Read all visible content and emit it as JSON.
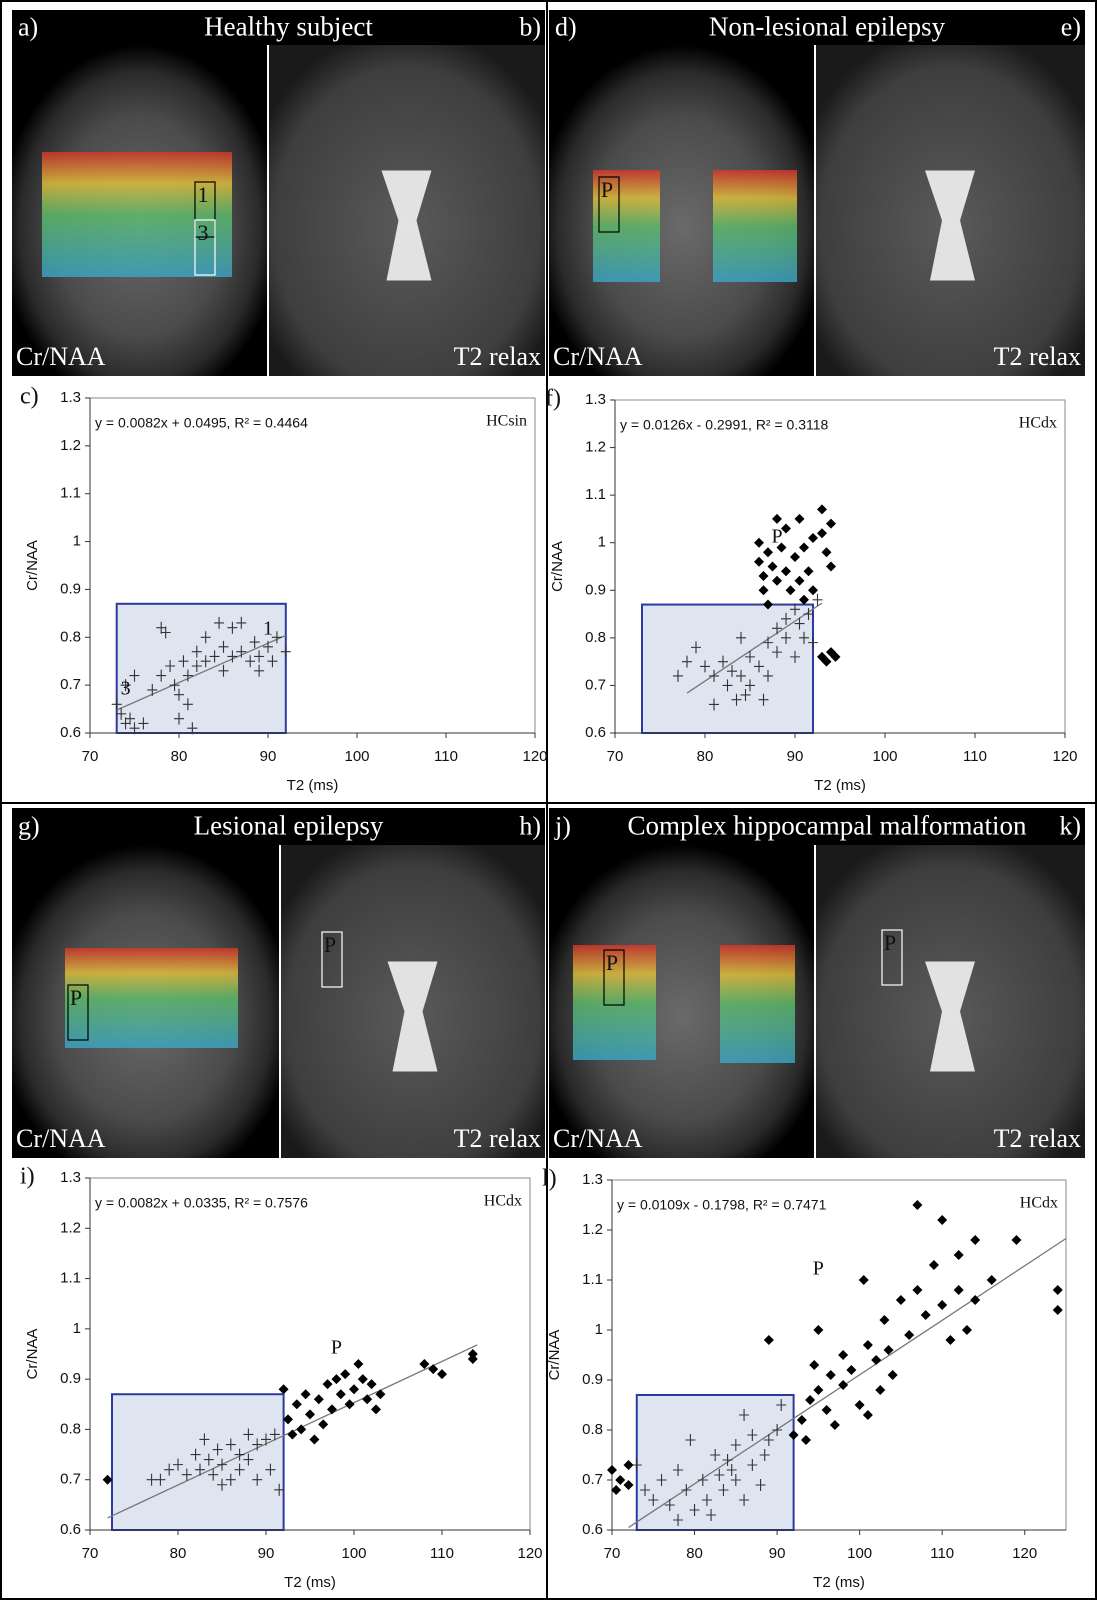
{
  "image_panels": [
    {
      "label_left": "a)",
      "title": "Healthy subject",
      "label_right": "b)",
      "caption_left": "Cr/NAA",
      "caption_right": "T2 relax",
      "roi_labels": [
        "1",
        "3"
      ]
    },
    {
      "label_left": "d)",
      "title": "Non-lesional epilepsy",
      "label_right": "e)",
      "caption_left": "Cr/NAA",
      "caption_right": "T2 relax",
      "roi_labels": [
        "P"
      ]
    },
    {
      "label_left": "g)",
      "title": "Lesional epilepsy",
      "label_right": "h)",
      "caption_left": "Cr/NAA",
      "caption_right": "T2 relax",
      "roi_labels": [
        "P",
        "P"
      ]
    },
    {
      "label_left": "j)",
      "title": "Complex hippocampal  malformation",
      "label_right": "k)",
      "caption_left": "Cr/NAA",
      "caption_right": "T2 relax",
      "roi_labels": [
        "P",
        "P"
      ]
    }
  ],
  "chart_data": [
    {
      "type": "scatter",
      "title": "c)",
      "equation": "y = 0.0082x + 0.0495, R² = 0.4464",
      "region": "HCsin",
      "x_label": "T2 (ms)",
      "y_label": "Cr/NAA",
      "xlim": [
        70,
        120
      ],
      "xticks": [
        70,
        80,
        90,
        100,
        110,
        120
      ],
      "ylim": [
        0.6,
        1.3
      ],
      "yticks": [
        0.6,
        0.7,
        0.8,
        0.9,
        1,
        1.1,
        1.2,
        1.3
      ],
      "highlight": {
        "x": [
          73,
          92
        ],
        "values": [
          0.6,
          0.87
        ],
        "color": "#2b3a9e",
        "fill": "#dfe4f1"
      },
      "trendline": {
        "x": [
          73,
          92
        ],
        "values": [
          0.648,
          0.804
        ],
        "color": "#777777"
      },
      "series": [
        {
          "marker": "cross",
          "color": "#333333",
          "x": [
            73,
            73.5,
            74,
            74.5,
            75,
            74,
            75,
            76,
            77,
            78,
            78,
            78.5,
            79,
            79.5,
            80,
            80,
            80.5,
            81,
            81,
            81.5,
            82,
            82,
            83,
            83,
            84,
            84.5,
            85,
            85,
            86,
            86,
            87,
            87,
            88,
            88.5,
            89,
            89,
            90,
            90.5,
            91,
            92
          ],
          "values": [
            0.66,
            0.64,
            0.62,
            0.63,
            0.61,
            0.7,
            0.72,
            0.62,
            0.69,
            0.72,
            0.82,
            0.81,
            0.74,
            0.7,
            0.68,
            0.63,
            0.75,
            0.72,
            0.66,
            0.61,
            0.77,
            0.74,
            0.8,
            0.75,
            0.76,
            0.83,
            0.78,
            0.73,
            0.82,
            0.76,
            0.83,
            0.77,
            0.75,
            0.79,
            0.73,
            0.76,
            0.78,
            0.75,
            0.8,
            0.77
          ]
        }
      ],
      "annotations": [
        {
          "text": "1",
          "x": 90,
          "y": 0.815
        },
        {
          "text": "3",
          "x": 74,
          "y": 0.69
        }
      ]
    },
    {
      "type": "scatter",
      "title": "f)",
      "equation": "y = 0.0126x - 0.2991, R² = 0.3118",
      "region": "HCdx",
      "x_label": "T2 (ms)",
      "y_label": "Cr/NAA",
      "xlim": [
        70,
        120
      ],
      "xticks": [
        70,
        80,
        90,
        100,
        110,
        120
      ],
      "ylim": [
        0.6,
        1.3
      ],
      "yticks": [
        0.6,
        0.7,
        0.8,
        0.9,
        1,
        1.1,
        1.2,
        1.3
      ],
      "highlight": {
        "x": [
          73,
          92
        ],
        "values": [
          0.6,
          0.87
        ],
        "color": "#2b3a9e",
        "fill": "#dfe4f1"
      },
      "trendline": {
        "x": [
          78,
          93
        ],
        "values": [
          0.684,
          0.873
        ],
        "color": "#777777"
      },
      "series": [
        {
          "marker": "cross",
          "color": "#333333",
          "x": [
            77,
            78,
            79,
            80,
            81,
            81,
            82,
            82.5,
            83,
            83.5,
            84,
            84,
            84.5,
            85,
            85,
            86,
            86.5,
            87,
            87,
            88,
            88,
            89,
            89,
            90,
            90,
            90.5,
            91,
            91.5,
            92,
            92.5
          ],
          "values": [
            0.72,
            0.75,
            0.78,
            0.74,
            0.72,
            0.66,
            0.75,
            0.7,
            0.73,
            0.67,
            0.8,
            0.72,
            0.68,
            0.76,
            0.7,
            0.74,
            0.67,
            0.79,
            0.72,
            0.82,
            0.77,
            0.84,
            0.8,
            0.86,
            0.76,
            0.83,
            0.8,
            0.85,
            0.79,
            0.88
          ]
        },
        {
          "marker": "diamond",
          "color": "#000000",
          "x": [
            86,
            86,
            86.5,
            86.5,
            87,
            87,
            87.5,
            88,
            88,
            88.5,
            89,
            89,
            89.5,
            90,
            90.5,
            90.5,
            91,
            91,
            91.5,
            92,
            92,
            93,
            93,
            93.5,
            94,
            94,
            93,
            93.5,
            94,
            94.5
          ],
          "values": [
            1.0,
            0.96,
            0.93,
            0.9,
            0.98,
            0.87,
            0.95,
            0.92,
            1.05,
            0.99,
            1.03,
            0.94,
            0.9,
            0.97,
            1.05,
            0.92,
            0.99,
            0.88,
            0.94,
            0.9,
            1.01,
            1.07,
            1.02,
            0.98,
            1.04,
            0.95,
            0.76,
            0.75,
            0.77,
            0.76
          ]
        }
      ],
      "annotations": [
        {
          "text": "P",
          "x": 88,
          "y": 1.01
        }
      ]
    },
    {
      "type": "scatter",
      "title": "i)",
      "equation": "y = 0.0082x + 0.0335, R² = 0.7576",
      "region": "HCdx",
      "x_label": "T2 (ms)",
      "y_label": "Cr/NAA",
      "xlim": [
        70,
        120
      ],
      "xticks": [
        70,
        80,
        90,
        100,
        110,
        120
      ],
      "ylim": [
        0.6,
        1.3
      ],
      "yticks": [
        0.6,
        0.7,
        0.8,
        0.9,
        1,
        1.1,
        1.2,
        1.3
      ],
      "highlight": {
        "x": [
          72.5,
          92
        ],
        "values": [
          0.6,
          0.87
        ],
        "color": "#2b3a9e",
        "fill": "#dfe4f1"
      },
      "trendline": {
        "x": [
          72,
          114
        ],
        "values": [
          0.624,
          0.968
        ],
        "color": "#777777"
      },
      "series": [
        {
          "marker": "cross",
          "color": "#333333",
          "x": [
            77,
            78,
            79,
            80,
            81,
            82,
            82.5,
            83,
            83.5,
            84,
            84.5,
            85,
            85,
            86,
            86,
            87,
            87,
            88,
            88,
            89,
            89,
            90,
            90.5,
            91,
            91.5
          ],
          "values": [
            0.7,
            0.7,
            0.72,
            0.73,
            0.71,
            0.75,
            0.72,
            0.78,
            0.74,
            0.71,
            0.76,
            0.69,
            0.73,
            0.77,
            0.7,
            0.75,
            0.72,
            0.79,
            0.74,
            0.7,
            0.77,
            0.78,
            0.72,
            0.79,
            0.68
          ]
        },
        {
          "marker": "diamond",
          "color": "#000000",
          "x": [
            72,
            92,
            92.5,
            93,
            93.5,
            94,
            94.5,
            95,
            95.5,
            96,
            96.5,
            97,
            97.5,
            98,
            98.5,
            99,
            99.5,
            100,
            100.5,
            101,
            101.5,
            102,
            102.5,
            103,
            108,
            109,
            110,
            113.5,
            113.5
          ],
          "values": [
            0.7,
            0.88,
            0.82,
            0.79,
            0.85,
            0.8,
            0.87,
            0.83,
            0.78,
            0.86,
            0.81,
            0.89,
            0.84,
            0.9,
            0.87,
            0.91,
            0.85,
            0.88,
            0.93,
            0.9,
            0.86,
            0.89,
            0.84,
            0.87,
            0.93,
            0.92,
            0.91,
            0.94,
            0.95
          ]
        }
      ],
      "annotations": [
        {
          "text": "P",
          "x": 98,
          "y": 0.96
        }
      ]
    },
    {
      "type": "scatter",
      "title": "l)",
      "equation": "y = 0.0109x - 0.1798, R² = 0.7471",
      "region": "HCdx",
      "x_label": "T2 (ms)",
      "y_label": "Cr/NAA",
      "xlim": [
        70,
        125
      ],
      "xticks": [
        70,
        80,
        90,
        100,
        110,
        120
      ],
      "ylim": [
        0.6,
        1.3
      ],
      "yticks": [
        0.6,
        0.7,
        0.8,
        0.9,
        1,
        1.1,
        1.2,
        1.3
      ],
      "highlight": {
        "x": [
          73,
          92
        ],
        "values": [
          0.6,
          0.87
        ],
        "color": "#2b3a9e",
        "fill": "#dfe4f1"
      },
      "trendline": {
        "x": [
          72,
          125
        ],
        "values": [
          0.605,
          1.183
        ],
        "color": "#777777"
      },
      "series": [
        {
          "marker": "cross",
          "color": "#333333",
          "x": [
            73,
            74,
            75,
            76,
            77,
            78,
            78,
            79,
            79.5,
            80,
            81,
            81.5,
            82,
            82.5,
            83,
            83.5,
            84,
            84.5,
            85,
            85,
            86,
            86,
            87,
            87,
            88,
            88.5,
            89,
            90,
            90.5
          ],
          "values": [
            0.73,
            0.68,
            0.66,
            0.7,
            0.65,
            0.62,
            0.72,
            0.68,
            0.78,
            0.64,
            0.7,
            0.66,
            0.63,
            0.75,
            0.71,
            0.68,
            0.74,
            0.72,
            0.77,
            0.7,
            0.83,
            0.66,
            0.79,
            0.73,
            0.69,
            0.75,
            0.78,
            0.8,
            0.85
          ]
        },
        {
          "marker": "diamond",
          "color": "#000000",
          "x": [
            70,
            70.5,
            71,
            72,
            72,
            89,
            92,
            93,
            93.5,
            94,
            94.5,
            95,
            95,
            96,
            96.5,
            97,
            98,
            98,
            99,
            100,
            100.5,
            101,
            101,
            102,
            102.5,
            103,
            103.5,
            104,
            105,
            106,
            107,
            107,
            108,
            109,
            110,
            110,
            111,
            112,
            112,
            113,
            114,
            114,
            116,
            119,
            124,
            124
          ],
          "values": [
            0.72,
            0.68,
            0.7,
            0.73,
            0.69,
            0.98,
            0.79,
            0.82,
            0.78,
            0.86,
            0.93,
            0.88,
            1.0,
            0.84,
            0.91,
            0.81,
            0.89,
            0.95,
            0.92,
            0.85,
            1.1,
            0.83,
            0.97,
            0.94,
            0.88,
            1.02,
            0.96,
            0.91,
            1.06,
            0.99,
            1.25,
            1.08,
            1.03,
            1.13,
            1.22,
            1.05,
            0.98,
            1.15,
            1.08,
            1.0,
            1.18,
            1.06,
            1.1,
            1.18,
            1.08,
            1.04
          ]
        }
      ],
      "annotations": [
        {
          "text": "P",
          "x": 95,
          "y": 1.12
        }
      ]
    }
  ]
}
